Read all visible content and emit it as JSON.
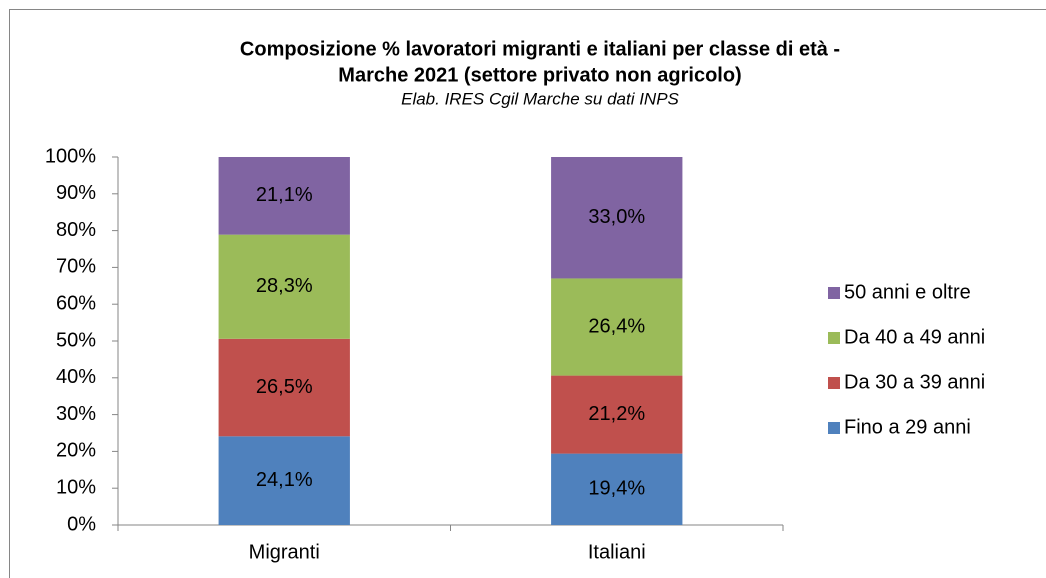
{
  "chart_data": {
    "type": "stacked_bar",
    "title": [
      "Composizione % lavoratori migranti e italiani per classe di età -",
      "Marche 2021 (settore privato non agricolo)"
    ],
    "subtitle": "Elab. IRES Cgil Marche su dati INPS",
    "categories": [
      "Migranti",
      "Italiani"
    ],
    "series": [
      {
        "name": "Fino a 29 anni",
        "color": "#4f81bd",
        "values": [
          24.1,
          19.4
        ],
        "value_labels": [
          "24,1%",
          "19,4%"
        ]
      },
      {
        "name": "Da 30 a 39 anni",
        "color": "#c0504d",
        "values": [
          26.5,
          21.2
        ],
        "value_labels": [
          "26,5%",
          "21,2%"
        ]
      },
      {
        "name": "Da 40 a 49 anni",
        "color": "#9bbb59",
        "values": [
          28.3,
          26.4
        ],
        "value_labels": [
          "28,3%",
          "26,4%"
        ]
      },
      {
        "name": "50 anni e oltre",
        "color": "#8064a2",
        "values": [
          21.1,
          33.0
        ],
        "value_labels": [
          "21,1%",
          "33,0%"
        ]
      }
    ],
    "ylim": [
      0,
      100
    ],
    "yticks": [
      {
        "value": 0,
        "label": "0%"
      },
      {
        "value": 10,
        "label": "10%"
      },
      {
        "value": 20,
        "label": "20%"
      },
      {
        "value": 30,
        "label": "30%"
      },
      {
        "value": 40,
        "label": "40%"
      },
      {
        "value": 50,
        "label": "50%"
      },
      {
        "value": 60,
        "label": "60%"
      },
      {
        "value": 70,
        "label": "70%"
      },
      {
        "value": 80,
        "label": "80%"
      },
      {
        "value": 90,
        "label": "90%"
      },
      {
        "value": 100,
        "label": "100%"
      }
    ],
    "grid": false,
    "legend": "right"
  }
}
